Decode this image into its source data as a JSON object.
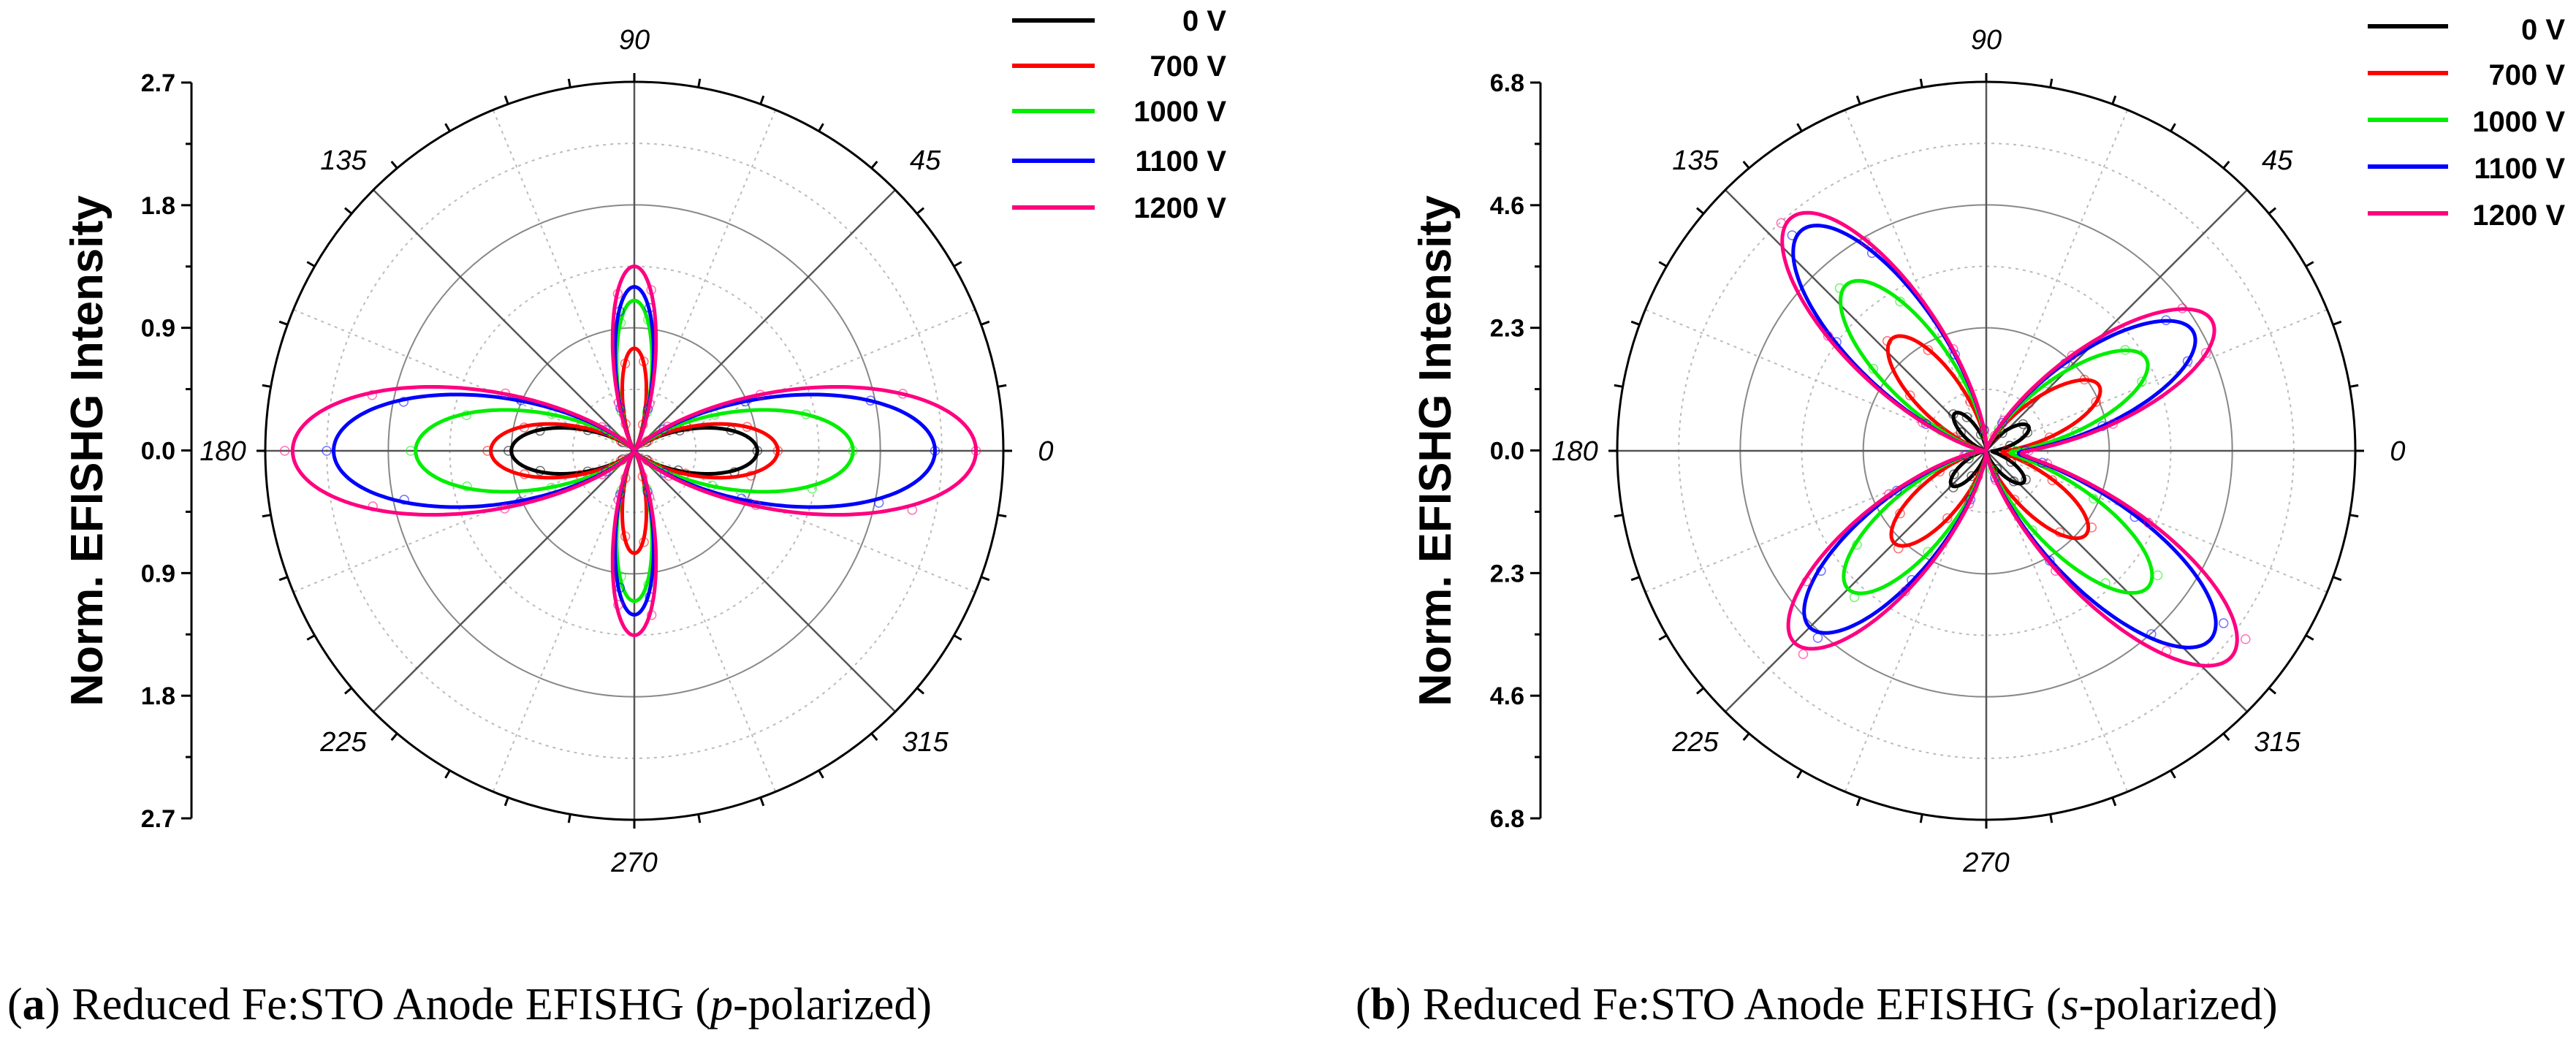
{
  "chart_data": [
    {
      "type": "polar",
      "panel": "a",
      "ylabel": "Norm. EFISHG Intensity",
      "rmax": 2.7,
      "radial_ticks": [
        "2.7",
        "1.8",
        "0.9",
        "0.0",
        "0.9",
        "1.8",
        "2.7"
      ],
      "angle_labels": [
        "0",
        "45",
        "90",
        "135",
        "180",
        "225",
        "270",
        "315"
      ],
      "lobes": "p",
      "series": [
        {
          "name": "0 V",
          "color": "#000000",
          "a": 0.9,
          "b": 0.0
        },
        {
          "name": "700 V",
          "color": "#ff0000",
          "a": 1.05,
          "b": 0.75
        },
        {
          "name": "1000 V",
          "color": "#00ee00",
          "a": 1.6,
          "b": 1.1
        },
        {
          "name": "1100 V",
          "color": "#0000ff",
          "a": 2.2,
          "b": 1.2
        },
        {
          "name": "1200 V",
          "color": "#ff0080",
          "a": 2.5,
          "b": 1.35
        }
      ],
      "caption_letter": "a",
      "caption_pre": "Reduced Fe:STO Anode EFISHG (",
      "caption_italic": "p",
      "caption_post": "-polarized)"
    },
    {
      "type": "polar",
      "panel": "b",
      "ylabel": "Norm. EFISHG Intensity",
      "rmax": 6.8,
      "radial_ticks": [
        "6.8",
        "4.6",
        "2.3",
        "0.0",
        "2.3",
        "4.6",
        "6.8"
      ],
      "angle_labels": [
        "0",
        "45",
        "90",
        "135",
        "180",
        "225",
        "270",
        "315"
      ],
      "lobes": "s",
      "series": [
        {
          "name": "0 V",
          "color": "#000000",
          "p": [
            0.9,
            0.9,
            0.9,
            0.9
          ]
        },
        {
          "name": "700 V",
          "color": "#ff0000",
          "p": [
            2.4,
            2.7,
            2.4,
            2.4
          ]
        },
        {
          "name": "1000 V",
          "color": "#00ee00",
          "p": [
            3.4,
            4.0,
            3.6,
            3.9
          ]
        },
        {
          "name": "1100 V",
          "color": "#0000ff",
          "p": [
            4.4,
            5.3,
            4.6,
            5.4
          ]
        },
        {
          "name": "1200 V",
          "color": "#ff0080",
          "p": [
            4.8,
            5.6,
            5.0,
            5.9
          ]
        }
      ],
      "caption_letter": "b",
      "caption_pre": "Reduced Fe:STO Anode EFISHG (",
      "caption_italic": "s",
      "caption_post": "-polarized)"
    }
  ]
}
